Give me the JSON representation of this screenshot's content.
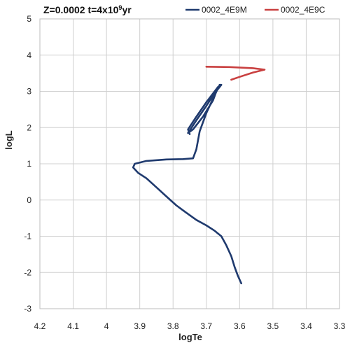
{
  "chart_data": {
    "type": "line",
    "title": {
      "main": "Z=0.0002 t=4x10",
      "sup": "9",
      "suffix": "yr"
    },
    "xlabel": "logTe",
    "ylabel": "logL",
    "xlim": [
      4.2,
      3.3
    ],
    "ylim": [
      -3,
      5
    ],
    "x_reversed": true,
    "xticks": [
      "4.2",
      "4.1",
      "4",
      "3.9",
      "3.8",
      "3.7",
      "3.6",
      "3.5",
      "3.4",
      "3.3"
    ],
    "yticks": [
      "-3",
      "-2",
      "-1",
      "0",
      "1",
      "2",
      "3",
      "4",
      "5"
    ],
    "grid": true,
    "legend_position": "top",
    "series": [
      {
        "name": "0002_4E9M",
        "color": "#1f3a6e",
        "points": [
          [
            3.595,
            -2.3
          ],
          [
            3.605,
            -2.1
          ],
          [
            3.615,
            -1.85
          ],
          [
            3.625,
            -1.55
          ],
          [
            3.64,
            -1.25
          ],
          [
            3.655,
            -1.0
          ],
          [
            3.675,
            -0.85
          ],
          [
            3.7,
            -0.7
          ],
          [
            3.73,
            -0.55
          ],
          [
            3.76,
            -0.35
          ],
          [
            3.79,
            -0.15
          ],
          [
            3.82,
            0.1
          ],
          [
            3.85,
            0.35
          ],
          [
            3.88,
            0.6
          ],
          [
            3.905,
            0.75
          ],
          [
            3.92,
            0.9
          ],
          [
            3.915,
            1.0
          ],
          [
            3.88,
            1.08
          ],
          [
            3.82,
            1.12
          ],
          [
            3.77,
            1.13
          ],
          [
            3.74,
            1.15
          ],
          [
            3.73,
            1.4
          ],
          [
            3.72,
            1.9
          ],
          [
            3.7,
            2.4
          ],
          [
            3.68,
            2.8
          ],
          [
            3.66,
            3.18
          ],
          [
            3.655,
            3.18
          ],
          [
            3.675,
            2.95
          ],
          [
            3.7,
            2.6
          ],
          [
            3.73,
            2.2
          ],
          [
            3.755,
            1.85
          ],
          [
            3.74,
            1.95
          ],
          [
            3.71,
            2.3
          ],
          [
            3.68,
            2.75
          ],
          [
            3.665,
            3.12
          ],
          [
            3.7,
            2.7
          ],
          [
            3.73,
            2.3
          ],
          [
            3.755,
            1.95
          ],
          [
            3.75,
            1.82
          ]
        ]
      },
      {
        "name": "0002_4E9C",
        "color": "#c94040",
        "points": [
          [
            3.7,
            3.68
          ],
          [
            3.63,
            3.67
          ],
          [
            3.56,
            3.64
          ],
          [
            3.525,
            3.6
          ],
          [
            3.56,
            3.52
          ],
          [
            3.6,
            3.4
          ],
          [
            3.625,
            3.32
          ]
        ]
      }
    ]
  }
}
